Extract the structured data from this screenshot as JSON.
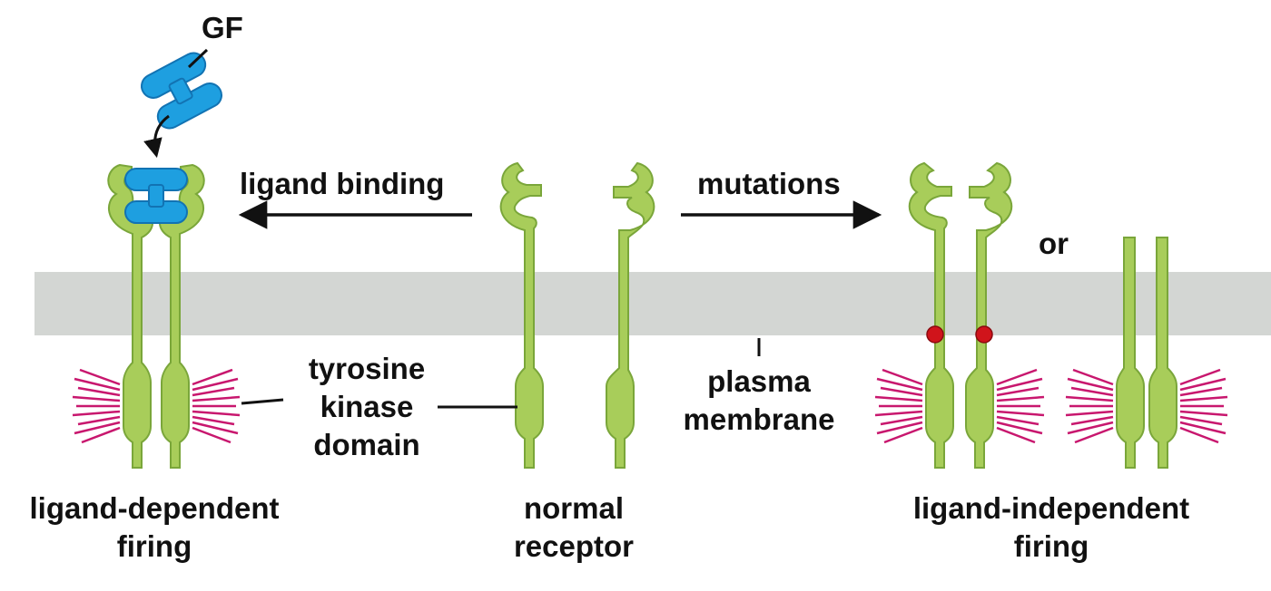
{
  "labels": {
    "gf": "GF",
    "ligand_binding": "ligand binding",
    "mutations": "mutations",
    "or": "or",
    "tyrosine_kinase_domain": [
      "tyrosine",
      "kinase",
      "domain"
    ],
    "plasma_membrane": [
      "plasma",
      "membrane"
    ],
    "ligand_dependent_firing": [
      "ligand-dependent",
      "firing"
    ],
    "normal_receptor": [
      "normal",
      "receptor"
    ],
    "ligand_independent_firing": [
      "ligand-independent",
      "firing"
    ]
  },
  "colors": {
    "membrane": "#d3d6d3",
    "receptor_fill": "#a8cd5a",
    "receptor_stroke": "#7aa63a",
    "growth_factor": "#1e9fe0",
    "growth_factor_stroke": "#1273b3",
    "activity_rays": "#c8176e",
    "mutation_dot": "#d0141b",
    "text": "#111111"
  }
}
